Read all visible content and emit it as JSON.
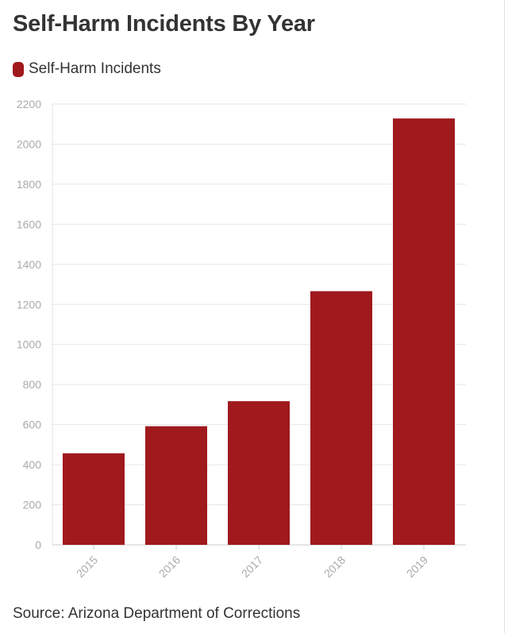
{
  "title": "Self-Harm Incidents By Year",
  "legend": {
    "label": "Self-Harm Incidents",
    "color": "#a0191d"
  },
  "source": "Source: Arizona Department of Corrections",
  "chart_data": {
    "type": "bar",
    "title": "Self-Harm Incidents By Year",
    "xlabel": "",
    "ylabel": "",
    "categories": [
      "2015",
      "2016",
      "2017",
      "2018",
      "2019"
    ],
    "series": [
      {
        "name": "Self-Harm Incidents",
        "values": [
          457,
          592,
          717,
          1266,
          2128
        ],
        "color": "#a0191d"
      }
    ],
    "ylim": [
      0,
      2200
    ],
    "yticks": [
      0,
      200,
      400,
      600,
      800,
      1000,
      1200,
      1400,
      1600,
      1800,
      2000,
      2200
    ],
    "grid": true,
    "legend_position": "top-left"
  }
}
